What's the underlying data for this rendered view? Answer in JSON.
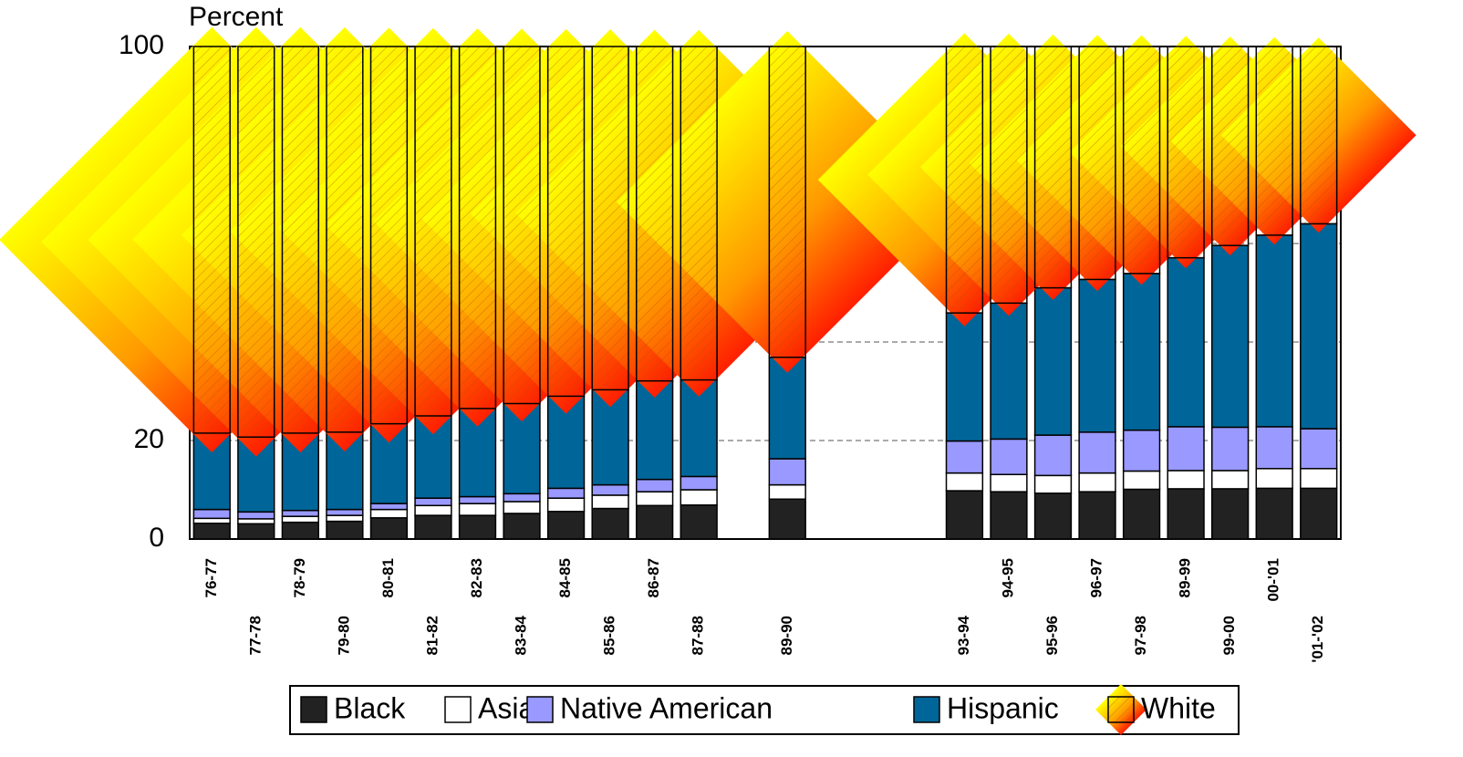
{
  "chart_data": {
    "type": "stacked-bar",
    "y_axis_label": "Percent",
    "categories": [
      "76-77",
      "77-78",
      "78-79",
      "79-80",
      "80-81",
      "81-82",
      "82-83",
      "83-84",
      "84-85",
      "85-86",
      "86-87",
      "87-88",
      null,
      "89-90",
      null,
      null,
      null,
      "93-94",
      "94-95",
      "95-96",
      "96-97",
      "97-98",
      "89-99",
      "99-00",
      "00-'01",
      "'01-'02"
    ],
    "series": [
      {
        "name": "Black",
        "color": "#222222",
        "values": [
          3.2,
          3.1,
          3.4,
          3.6,
          4.3,
          4.8,
          4.8,
          5.2,
          5.6,
          6.2,
          6.8,
          6.9,
          null,
          8.1,
          null,
          null,
          null,
          9.8,
          9.6,
          9.3,
          9.6,
          10.1,
          10.2,
          10.2,
          10.3,
          10.3
        ]
      },
      {
        "name": "Asian",
        "color": "#ffffff",
        "values": [
          1.0,
          1.0,
          1.2,
          1.2,
          1.7,
          2.0,
          2.4,
          2.4,
          2.7,
          2.7,
          2.8,
          3.1,
          null,
          2.9,
          null,
          null,
          null,
          3.6,
          3.5,
          3.6,
          3.8,
          3.7,
          3.7,
          3.7,
          4.0,
          4.0
        ]
      },
      {
        "name": "Native American",
        "color": "#9999ff",
        "values": [
          1.8,
          1.4,
          1.2,
          1.2,
          1.2,
          1.5,
          1.4,
          1.6,
          2.0,
          2.1,
          2.5,
          2.7,
          null,
          5.3,
          null,
          null,
          null,
          6.5,
          7.2,
          8.2,
          8.3,
          8.3,
          8.9,
          8.8,
          8.5,
          8.1
        ]
      },
      {
        "name": "Hispanic",
        "color": "#006699",
        "values": [
          15.5,
          15.2,
          15.7,
          15.7,
          16.2,
          16.7,
          17.9,
          18.3,
          18.7,
          19.3,
          20.0,
          19.6,
          null,
          20.6,
          null,
          null,
          null,
          26.0,
          27.6,
          29.9,
          31.0,
          31.8,
          34.3,
          36.9,
          38.9,
          41.6
        ]
      },
      {
        "name": "White",
        "color": "#ff8000",
        "values": [
          78.5,
          79.3,
          78.5,
          78.3,
          76.6,
          75.0,
          73.5,
          72.5,
          71.0,
          69.7,
          67.9,
          67.7,
          null,
          63.1,
          null,
          null,
          null,
          54.1,
          52.1,
          49.0,
          47.3,
          46.1,
          42.9,
          40.4,
          38.3,
          36.0
        ]
      }
    ],
    "ylim": [
      0,
      100
    ],
    "yticks": [
      0,
      20,
      40,
      60,
      80,
      100
    ],
    "grid": true,
    "legend": "bottom"
  }
}
